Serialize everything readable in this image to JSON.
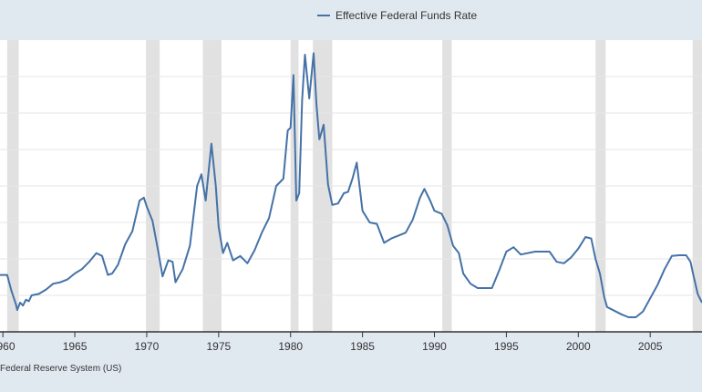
{
  "legend": {
    "label": "Effective Federal Funds Rate"
  },
  "source_text": "Federal Reserve System (US)",
  "colors": {
    "line": "#4572a7",
    "recession": "#e1e1e1",
    "grid": "#e6e6e6",
    "axis": "#333333",
    "plot_bg": "#ffffff",
    "outer_bg": "#e1e9f0"
  },
  "chart_data": {
    "type": "line",
    "title": "",
    "xlabel": "",
    "ylabel": "",
    "x_tick_labels": [
      "1960",
      "1965",
      "1970",
      "1975",
      "1980",
      "1985",
      "1990",
      "1995",
      "2000",
      "2005"
    ],
    "x_tick_years": [
      1960,
      1965,
      1970,
      1975,
      1980,
      1985,
      1990,
      1995,
      2000,
      2005
    ],
    "xlim": [
      1959.8,
      2008.6
    ],
    "ylim": [
      0,
      20
    ],
    "grid": true,
    "legend_position": "top-center",
    "recessions": [
      [
        1960.3,
        1961.1
      ],
      [
        1969.95,
        1970.9
      ],
      [
        1973.9,
        1975.2
      ],
      [
        1980.0,
        1980.55
      ],
      [
        1981.55,
        1982.9
      ],
      [
        1990.55,
        1991.2
      ],
      [
        2001.2,
        2001.9
      ],
      [
        2007.95,
        2008.6
      ]
    ],
    "series": [
      {
        "name": "Effective Federal Funds Rate",
        "x": [
          1959.8,
          1960.3,
          1960.6,
          1960.9,
          1961.0,
          1961.2,
          1961.4,
          1961.6,
          1961.8,
          1962.0,
          1962.5,
          1963.0,
          1963.5,
          1964.0,
          1964.5,
          1965.0,
          1965.5,
          1966.0,
          1966.5,
          1966.9,
          1967.3,
          1967.6,
          1968.0,
          1968.5,
          1969.0,
          1969.5,
          1969.8,
          1970.0,
          1970.4,
          1970.8,
          1971.1,
          1971.5,
          1971.8,
          1972.0,
          1972.5,
          1973.0,
          1973.5,
          1973.8,
          1974.1,
          1974.5,
          1974.8,
          1975.0,
          1975.3,
          1975.6,
          1976.0,
          1976.5,
          1977.0,
          1977.5,
          1978.0,
          1978.5,
          1979.0,
          1979.5,
          1979.8,
          1980.0,
          1980.2,
          1980.4,
          1980.6,
          1980.8,
          1981.0,
          1981.3,
          1981.6,
          1981.8,
          1982.0,
          1982.3,
          1982.6,
          1982.9,
          1983.3,
          1983.7,
          1984.0,
          1984.3,
          1984.6,
          1985.0,
          1985.5,
          1986.0,
          1986.5,
          1987.0,
          1987.5,
          1988.0,
          1988.5,
          1989.0,
          1989.3,
          1989.7,
          1990.0,
          1990.5,
          1990.9,
          1991.3,
          1991.7,
          1992.0,
          1992.5,
          1993.0,
          1993.5,
          1994.0,
          1994.5,
          1995.0,
          1995.5,
          1996.0,
          1997.0,
          1998.0,
          1998.5,
          1999.0,
          1999.5,
          2000.0,
          2000.5,
          2000.9,
          2001.2,
          2001.5,
          2001.8,
          2002.0,
          2003.0,
          2003.5,
          2004.0,
          2004.5,
          2005.0,
          2005.5,
          2006.0,
          2006.5,
          2007.0,
          2007.5,
          2007.8,
          2008.0,
          2008.3,
          2008.6
        ],
        "values": [
          3.9,
          3.9,
          2.8,
          1.9,
          1.5,
          2.0,
          1.8,
          2.2,
          2.1,
          2.5,
          2.6,
          2.9,
          3.3,
          3.4,
          3.6,
          4.0,
          4.3,
          4.8,
          5.4,
          5.2,
          3.9,
          4.0,
          4.6,
          6.0,
          6.9,
          9.0,
          9.2,
          8.6,
          7.6,
          5.5,
          3.8,
          4.9,
          4.8,
          3.4,
          4.3,
          5.9,
          10.0,
          10.8,
          9.0,
          12.9,
          10.0,
          7.2,
          5.4,
          6.1,
          4.9,
          5.2,
          4.7,
          5.6,
          6.8,
          7.8,
          10.0,
          10.5,
          13.8,
          14.0,
          17.6,
          9.0,
          9.5,
          15.9,
          19.0,
          16.0,
          19.1,
          15.6,
          13.2,
          14.2,
          10.1,
          8.7,
          8.8,
          9.5,
          9.6,
          10.5,
          11.6,
          8.3,
          7.5,
          7.4,
          6.1,
          6.4,
          6.6,
          6.8,
          7.7,
          9.2,
          9.8,
          9.0,
          8.3,
          8.1,
          7.3,
          5.9,
          5.4,
          4.0,
          3.3,
          3.0,
          3.0,
          3.0,
          4.2,
          5.5,
          5.8,
          5.3,
          5.5,
          5.5,
          4.8,
          4.7,
          5.1,
          5.7,
          6.5,
          6.4,
          5.0,
          4.0,
          2.4,
          1.7,
          1.2,
          1.0,
          1.0,
          1.4,
          2.3,
          3.2,
          4.3,
          5.2,
          5.25,
          5.25,
          4.8,
          3.9,
          2.6,
          2.0
        ]
      }
    ]
  }
}
